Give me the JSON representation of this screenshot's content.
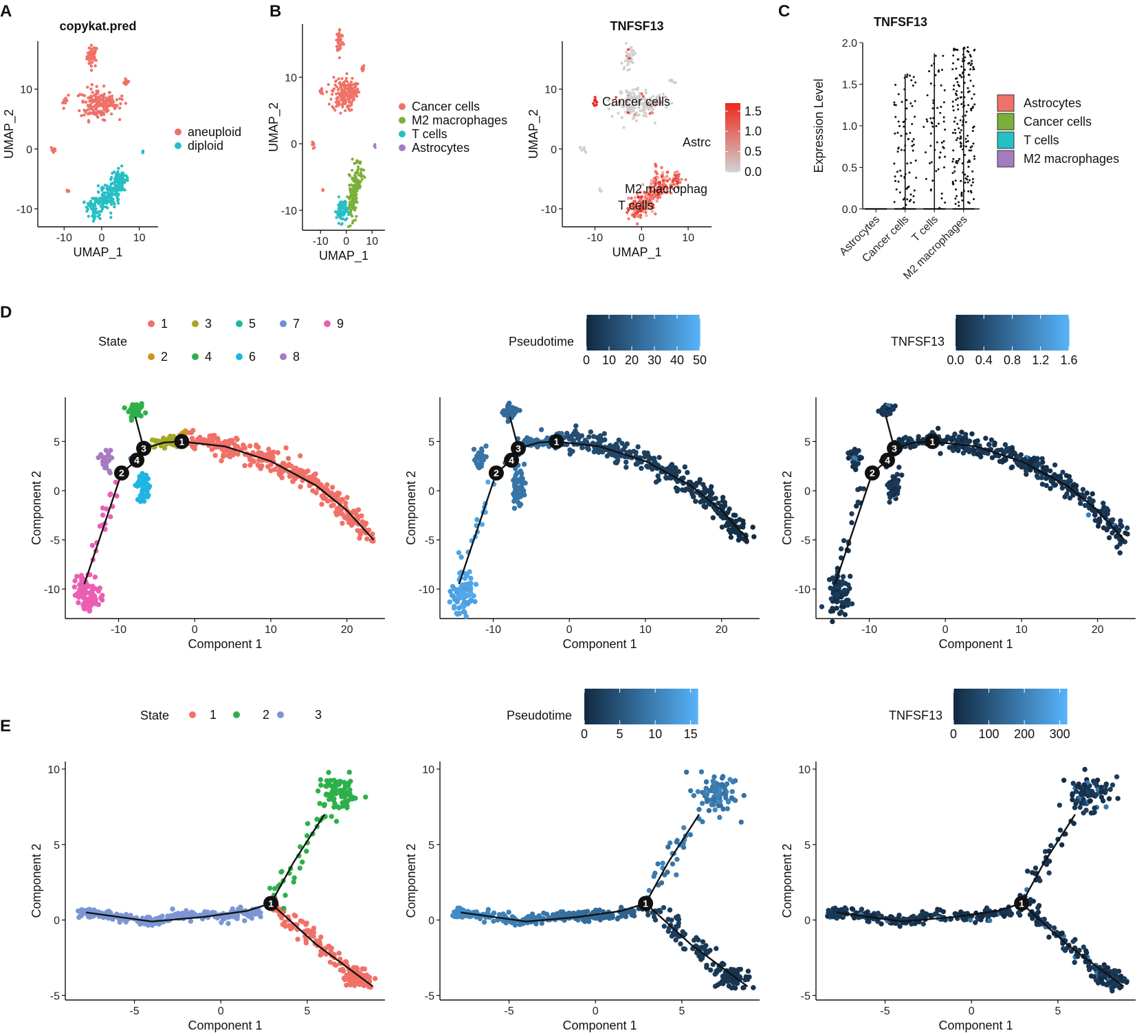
{
  "panel_letters": {
    "A": "A",
    "B": "B",
    "C": "C",
    "D": "D",
    "E": "E"
  },
  "chart_data": [
    {
      "id": "A",
      "type": "scatter",
      "title": "copykat.pred",
      "xlabel": "UMAP_1",
      "ylabel": "UMAP_2",
      "xlim": [
        -17,
        15
      ],
      "ylim": [
        -13,
        18
      ],
      "xticks": [
        "-10",
        "0",
        "10"
      ],
      "yticks": [
        "10",
        "0",
        "-10"
      ],
      "legend": [
        {
          "label": "aneuploid",
          "color": "#F07167"
        },
        {
          "label": "diploid",
          "color": "#26BFC4"
        }
      ]
    },
    {
      "id": "B1",
      "type": "scatter",
      "title": "",
      "xlabel": "UMAP_1",
      "ylabel": "UMAP_2",
      "xlim": [
        -17,
        15
      ],
      "ylim": [
        -13,
        18
      ],
      "xticks": [
        "-10",
        "0",
        "10"
      ],
      "yticks": [
        "10",
        "0",
        "-10"
      ],
      "legend": [
        {
          "label": "Cancer cells",
          "color": "#F07167"
        },
        {
          "label": "M2 macrophages",
          "color": "#7CAE3A"
        },
        {
          "label": "T cells",
          "color": "#26BFC4"
        },
        {
          "label": "Astrocytes",
          "color": "#A77BC0"
        }
      ]
    },
    {
      "id": "B2",
      "type": "scatter",
      "title": "TNFSF13",
      "xlabel": "UMAP_1",
      "ylabel": "UMAP_2",
      "xlim": [
        -17,
        15
      ],
      "ylim": [
        -13,
        18
      ],
      "xticks": [
        "-10",
        "0",
        "10"
      ],
      "yticks": [
        "10",
        "0",
        "-10"
      ],
      "annotations": [
        "Cancer cells",
        "Astrc",
        "M2 macrophag",
        "T cells"
      ],
      "colorbar": {
        "ticks": [
          "1.5",
          "1.0",
          "0.5",
          "0.0"
        ],
        "range": [
          0,
          1.7
        ],
        "low": "#d0d0d0",
        "high": "#ee2a1e"
      }
    },
    {
      "id": "C",
      "type": "violin",
      "title": "TNFSF13",
      "xlabel": "",
      "ylabel": "Expression Level",
      "ylim": [
        0,
        2.0
      ],
      "yticks": [
        "2.0",
        "1.5",
        "1.0",
        "0.5",
        "0.0"
      ],
      "categories": [
        "Astrocytes",
        "Cancer cells",
        "T cells",
        "M2 macrophages"
      ],
      "max_values": [
        0.02,
        1.62,
        1.87,
        1.95
      ],
      "legend": [
        {
          "label": "Astrocytes",
          "color": "#F07167"
        },
        {
          "label": "Cancer cells",
          "color": "#7CAE3A"
        },
        {
          "label": "T cells",
          "color": "#26BFC4"
        },
        {
          "label": "M2 macrophages",
          "color": "#A77BC0"
        }
      ]
    },
    {
      "id": "D1",
      "type": "scatter",
      "xlabel": "Component 1",
      "ylabel": "Component 2",
      "xlim": [
        -17,
        25
      ],
      "ylim": [
        -13,
        9.5
      ],
      "xticks": [
        "-10",
        "0",
        "10",
        "20"
      ],
      "yticks": [
        "5",
        "0",
        "-5",
        "-10"
      ],
      "legend_title": "State",
      "legend": [
        {
          "label": "1",
          "color": "#F07167"
        },
        {
          "label": "2",
          "color": "#CF9420"
        },
        {
          "label": "3",
          "color": "#A3A828"
        },
        {
          "label": "4",
          "color": "#2DB04A"
        },
        {
          "label": "5",
          "color": "#22B5A0"
        },
        {
          "label": "6",
          "color": "#1FB5E3"
        },
        {
          "label": "7",
          "color": "#6B8FD6"
        },
        {
          "label": "8",
          "color": "#A77BC0"
        },
        {
          "label": "9",
          "color": "#EB5FB3"
        }
      ],
      "nodes": [
        "1",
        "2",
        "3",
        "4"
      ]
    },
    {
      "id": "D2",
      "type": "scatter",
      "xlabel": "Component 1",
      "ylabel": "Component 2",
      "xlim": [
        -17,
        25
      ],
      "ylim": [
        -13,
        9.5
      ],
      "xticks": [
        "-10",
        "0",
        "10",
        "20"
      ],
      "yticks": [
        "5",
        "0",
        "-5",
        "-10"
      ],
      "colorbar": {
        "title": "Pseudotime",
        "ticks": [
          "0",
          "10",
          "20",
          "30",
          "40",
          "50"
        ],
        "range": [
          0,
          50
        ]
      },
      "nodes": [
        "1",
        "2",
        "3",
        "4"
      ]
    },
    {
      "id": "D3",
      "type": "scatter",
      "xlabel": "Component 1",
      "ylabel": "Component 2",
      "xlim": [
        -17,
        25
      ],
      "ylim": [
        -13,
        9.5
      ],
      "xticks": [
        "-10",
        "0",
        "10",
        "20"
      ],
      "yticks": [
        "5",
        "0",
        "-5",
        "-10"
      ],
      "colorbar": {
        "title": "TNFSF13",
        "ticks": [
          "0.0",
          "0.4",
          "0.8",
          "1.2",
          "1.6"
        ],
        "range": [
          0,
          1.6
        ]
      },
      "nodes": [
        "1",
        "2",
        "3",
        "4"
      ]
    },
    {
      "id": "E1",
      "type": "scatter",
      "xlabel": "Component 1",
      "ylabel": "Component 2",
      "xlim": [
        -9,
        9.5
      ],
      "ylim": [
        -5.3,
        10.5
      ],
      "xticks": [
        "-5",
        "0",
        "5"
      ],
      "yticks": [
        "10",
        "5",
        "0",
        "-5"
      ],
      "legend_title": "State",
      "legend": [
        {
          "label": "1",
          "color": "#F07167"
        },
        {
          "label": "2",
          "color": "#2DB04A"
        },
        {
          "label": "3",
          "color": "#7B96D2"
        }
      ],
      "nodes": [
        "1"
      ]
    },
    {
      "id": "E2",
      "type": "scatter",
      "xlabel": "Component 1",
      "ylabel": "Component 2",
      "xlim": [
        -9,
        9.5
      ],
      "ylim": [
        -5.3,
        10.5
      ],
      "xticks": [
        "-5",
        "0",
        "5"
      ],
      "yticks": [
        "10",
        "5",
        "0",
        "-5"
      ],
      "colorbar": {
        "title": "Pseudotime",
        "ticks": [
          "0",
          "5",
          "10",
          "15"
        ],
        "range": [
          0,
          16
        ]
      },
      "nodes": [
        "1"
      ]
    },
    {
      "id": "E3",
      "type": "scatter",
      "xlabel": "Component 1",
      "ylabel": "Component 2",
      "xlim": [
        -9,
        9.5
      ],
      "ylim": [
        -5.3,
        10.5
      ],
      "xticks": [
        "-5",
        "0",
        "5"
      ],
      "yticks": [
        "10",
        "5",
        "0",
        "-5"
      ],
      "colorbar": {
        "title": "TNFSF13",
        "ticks": [
          "0",
          "100",
          "200",
          "300"
        ],
        "range": [
          0,
          320
        ]
      },
      "nodes": [
        "1"
      ]
    }
  ]
}
